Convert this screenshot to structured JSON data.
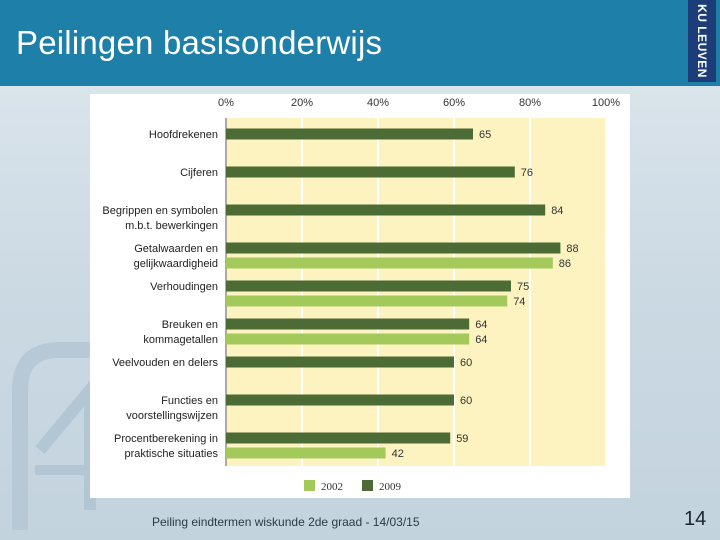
{
  "slide": {
    "title": "Peilingen basisonderwijs",
    "logo_text": "KU LEUVEN",
    "footer": "Peiling eindtermen wiskunde 2de graad - 14/03/15",
    "page_number": "14"
  },
  "colors": {
    "header": "#1e7fa8",
    "series_2002": "#a3c95a",
    "series_2009": "#4d6b34",
    "plot_background": "#fdf3c0"
  },
  "chart_data": {
    "type": "bar",
    "orientation": "horizontal",
    "x_ticks": [
      "0%",
      "20%",
      "40%",
      "60%",
      "80%",
      "100%"
    ],
    "xlim": [
      0,
      100
    ],
    "categories": [
      [
        "Hoofdrekenen"
      ],
      [
        "Cijferen"
      ],
      [
        "Begrippen en symbolen",
        "m.b.t. bewerkingen"
      ],
      [
        "Getalwaarden en",
        "gelijkwaardigheid"
      ],
      [
        "Verhoudingen"
      ],
      [
        "Breuken en",
        "kommagetallen"
      ],
      [
        "Veelvouden en delers"
      ],
      [
        "Functies en",
        "voorstellingswijzen"
      ],
      [
        "Procentberekening in",
        "praktische situaties"
      ]
    ],
    "series": [
      {
        "name": "2009",
        "color": "#4d6b34",
        "values": [
          65,
          76,
          84,
          88,
          75,
          64,
          60,
          60,
          59
        ]
      },
      {
        "name": "2002",
        "color": "#a3c95a",
        "values": [
          null,
          null,
          null,
          86,
          74,
          64,
          null,
          null,
          42
        ]
      }
    ],
    "legend": {
      "position": "bottom",
      "items": [
        "2002",
        "2009"
      ]
    },
    "grid": true
  }
}
